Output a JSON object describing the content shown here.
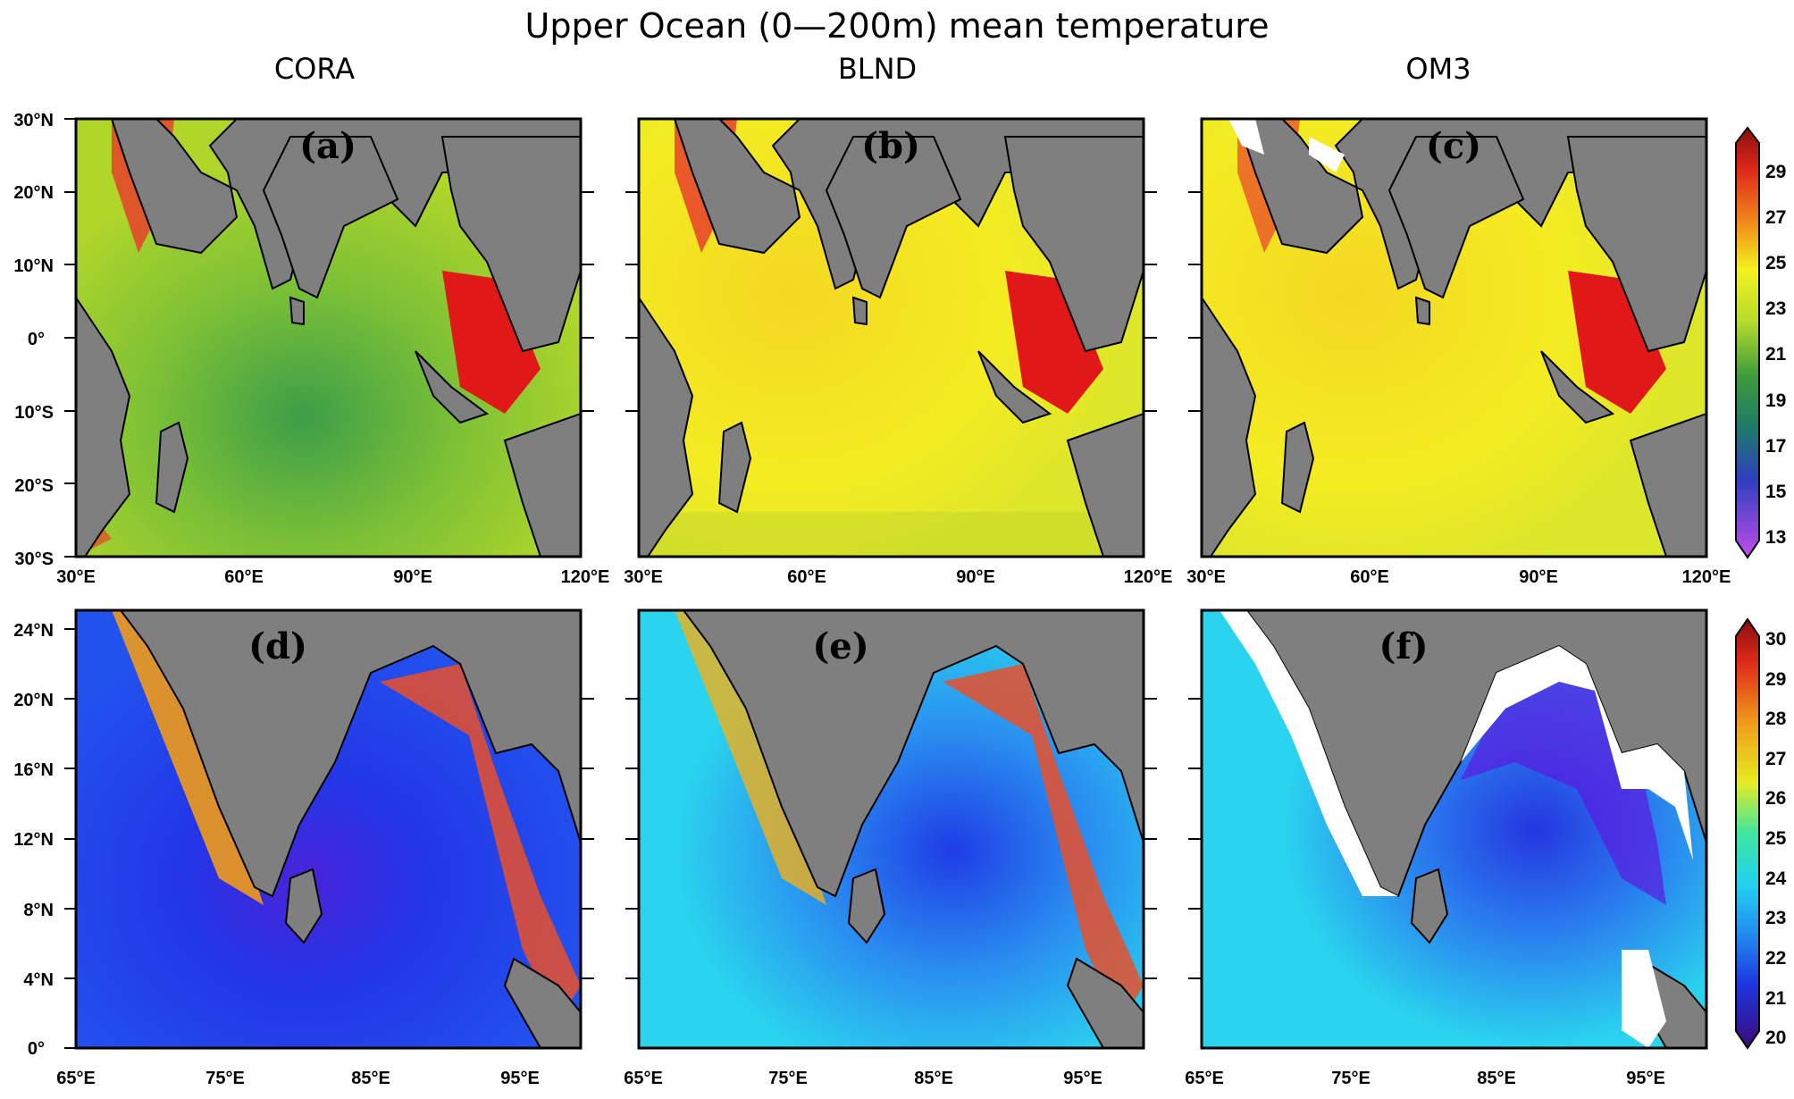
{
  "figure": {
    "title": "Upper Ocean (0—200m) mean temperature",
    "columns": [
      "CORA",
      "BLND",
      "OM3"
    ]
  },
  "top_row": {
    "panel_labels": [
      "(a)",
      "(b)",
      "(c)"
    ],
    "lat_ticks": [
      "30°N",
      "20°N",
      "10°N",
      "0°",
      "10°S",
      "20°S",
      "30°S"
    ],
    "lon_ticks": [
      "30°E",
      "60°E",
      "90°E",
      "120°E"
    ],
    "colorbar_labels": [
      "29",
      "27",
      "25",
      "23",
      "21",
      "19",
      "17",
      "15",
      "13"
    ]
  },
  "bottom_row": {
    "panel_labels": [
      "(d)",
      "(e)",
      "(f)"
    ],
    "lat_ticks": [
      "24°N",
      "20°N",
      "16°N",
      "12°N",
      "8°N",
      "4°N",
      "0°"
    ],
    "lon_ticks": [
      "65°E",
      "75°E",
      "85°E",
      "95°E"
    ],
    "colorbar_labels": [
      "30",
      "29",
      "28",
      "27",
      "26",
      "25",
      "24",
      "23",
      "22",
      "21",
      "20"
    ]
  },
  "colors": {
    "land": "#7f7f7f",
    "top_a_ocean": "#9ccf2a",
    "top_bc_ocean": "#f2ee22",
    "bot_d_ocean": "#1f3fe6",
    "bot_e_ocean": "#22d6ee",
    "bot_f_ocean": "#22d8ec",
    "coast_warm": "#e8402a"
  }
}
